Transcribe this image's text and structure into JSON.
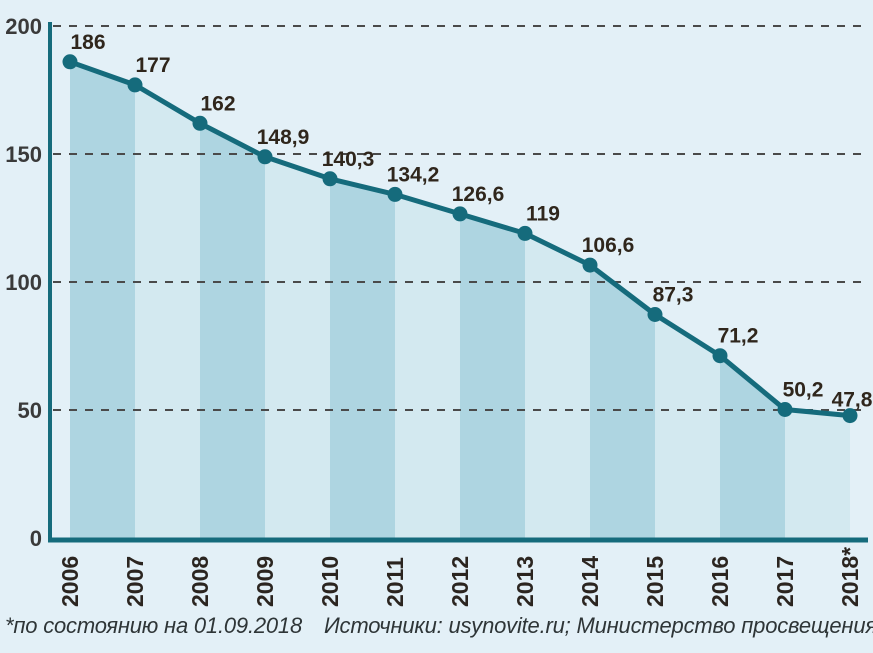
{
  "chart_data": {
    "type": "area",
    "title": "",
    "categories": [
      "2006",
      "2007",
      "2008",
      "2009",
      "2010",
      "2011",
      "2012",
      "2013",
      "2014",
      "2015",
      "2016",
      "2017",
      "2018*"
    ],
    "values": [
      186,
      177,
      162,
      148.9,
      140.3,
      134.2,
      126.6,
      119,
      106.6,
      87.3,
      71.2,
      50.2,
      47.8
    ],
    "value_labels": [
      "186",
      "177",
      "162",
      "148,9",
      "140,3",
      "134,2",
      "126,6",
      "119",
      "106,6",
      "87,3",
      "71,2",
      "50,2",
      "47,8"
    ],
    "ylim": [
      0,
      200
    ],
    "yticks": [
      0,
      50,
      100,
      150,
      200
    ],
    "ytick_labels": [
      "0",
      "50",
      "100",
      "150",
      "200"
    ],
    "grid": "horizontal-dashed",
    "legend": "none",
    "style": "teal line with dots over alternating light/dark blue column bands filled to the line"
  },
  "caption": {
    "footnote": "*по состоянию на 01.09.2018",
    "sources": "Источники: usynovite.ru; Министерство просвещения РФ"
  },
  "colors": {
    "background": "#e3f0f7",
    "band_dark": "#aed5e1",
    "band_light": "#d3e9f0",
    "line": "#156b7c",
    "grid": "#4a4a4a",
    "value_label": "#2f261c",
    "year_label": "#2b2520",
    "axis_label": "#3a3a3a",
    "caption": "#2e3537"
  }
}
